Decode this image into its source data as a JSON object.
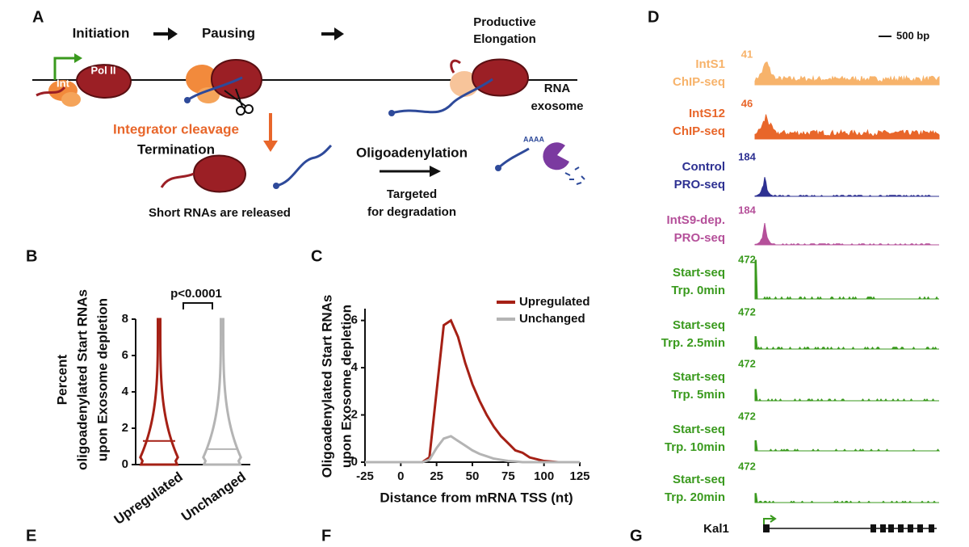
{
  "panel_labels": [
    "A",
    "B",
    "C",
    "D",
    "E",
    "F",
    "G"
  ],
  "diagram": {
    "steps": [
      "Initiation",
      "Pausing"
    ],
    "elongation": [
      "Productive",
      "Elongation"
    ],
    "pol": "Pol II",
    "int": "Int",
    "cleavage": "Integrator cleavage",
    "termination": "Termination",
    "released": "Short RNAs are released",
    "oligo": "Oligoadenylation",
    "targeted": [
      "Targeted",
      "for degradation"
    ],
    "exosome": [
      "RNA",
      "exosome"
    ],
    "polya": "AAAA"
  },
  "chart_data": [
    {
      "type": "violin",
      "ylabel": [
        "Percent",
        "oligoadenylated Start RNAs",
        "upon Exosome depletion"
      ],
      "categories": [
        "Upregulated",
        "Unchanged"
      ],
      "values": [
        1.3,
        0.85
      ],
      "max": [
        8,
        8
      ],
      "colors": [
        "#a52015",
        "#b4b4b4"
      ],
      "ylim": [
        0,
        8
      ],
      "yticks": [
        0,
        2,
        4,
        6,
        8
      ],
      "annotation": "p<0.0001"
    },
    {
      "type": "line",
      "ylabel": [
        "Oligoadenylated Start RNAs",
        "upon Exosome depletion"
      ],
      "xlabel": "Distance from mRNA TSS (nt)",
      "x": [
        -25,
        -10,
        0,
        10,
        15,
        20,
        25,
        30,
        35,
        40,
        45,
        50,
        55,
        60,
        65,
        70,
        75,
        80,
        85,
        90,
        100,
        110,
        125
      ],
      "series": [
        {
          "name": "Upregulated",
          "color": "#a52015",
          "values": [
            0,
            0,
            0,
            0,
            0,
            0.2,
            3,
            5.8,
            6,
            5.3,
            4.2,
            3.3,
            2.6,
            2,
            1.5,
            1.1,
            0.8,
            0.5,
            0.4,
            0.2,
            0.05,
            0,
            0
          ]
        },
        {
          "name": "Unchanged",
          "color": "#b4b4b4",
          "values": [
            0,
            0,
            0,
            0,
            0,
            0.1,
            0.6,
            1.0,
            1.1,
            0.9,
            0.7,
            0.5,
            0.35,
            0.25,
            0.15,
            0.1,
            0.05,
            0.03,
            0,
            0,
            0,
            0,
            0
          ]
        }
      ],
      "xlim": [
        -25,
        125
      ],
      "xticks": [
        -25,
        0,
        25,
        50,
        75,
        100,
        125
      ],
      "ylim": [
        0,
        6.5
      ],
      "yticks": [
        0,
        2,
        4,
        6
      ],
      "legend": "upper right"
    },
    {
      "type": "tracks",
      "scale": "500 bp",
      "gene": "Kal1",
      "series": [
        {
          "name": [
            "IntS1",
            "ChIP-seq"
          ],
          "max": 41,
          "color": "#f7b36b"
        },
        {
          "name": [
            "IntS12",
            "ChIP-seq"
          ],
          "max": 46,
          "color": "#e8662a"
        },
        {
          "name": [
            "Control",
            "PRO-seq"
          ],
          "max": 184,
          "color": "#2e3192"
        },
        {
          "name": [
            "IntS9-dep.",
            "PRO-seq"
          ],
          "max": 184,
          "color": "#b5509a"
        },
        {
          "name": [
            "Start-seq",
            "Trp. 0min"
          ],
          "max": 472,
          "color": "#3a9a1e"
        },
        {
          "name": [
            "Start-seq",
            "Trp. 2.5min"
          ],
          "max": 472,
          "color": "#3a9a1e"
        },
        {
          "name": [
            "Start-seq",
            "Trp. 5min"
          ],
          "max": 472,
          "color": "#3a9a1e"
        },
        {
          "name": [
            "Start-seq",
            "Trp. 10min"
          ],
          "max": 472,
          "color": "#3a9a1e"
        },
        {
          "name": [
            "Start-seq",
            "Trp. 20min"
          ],
          "max": 472,
          "color": "#3a9a1e"
        }
      ]
    }
  ]
}
